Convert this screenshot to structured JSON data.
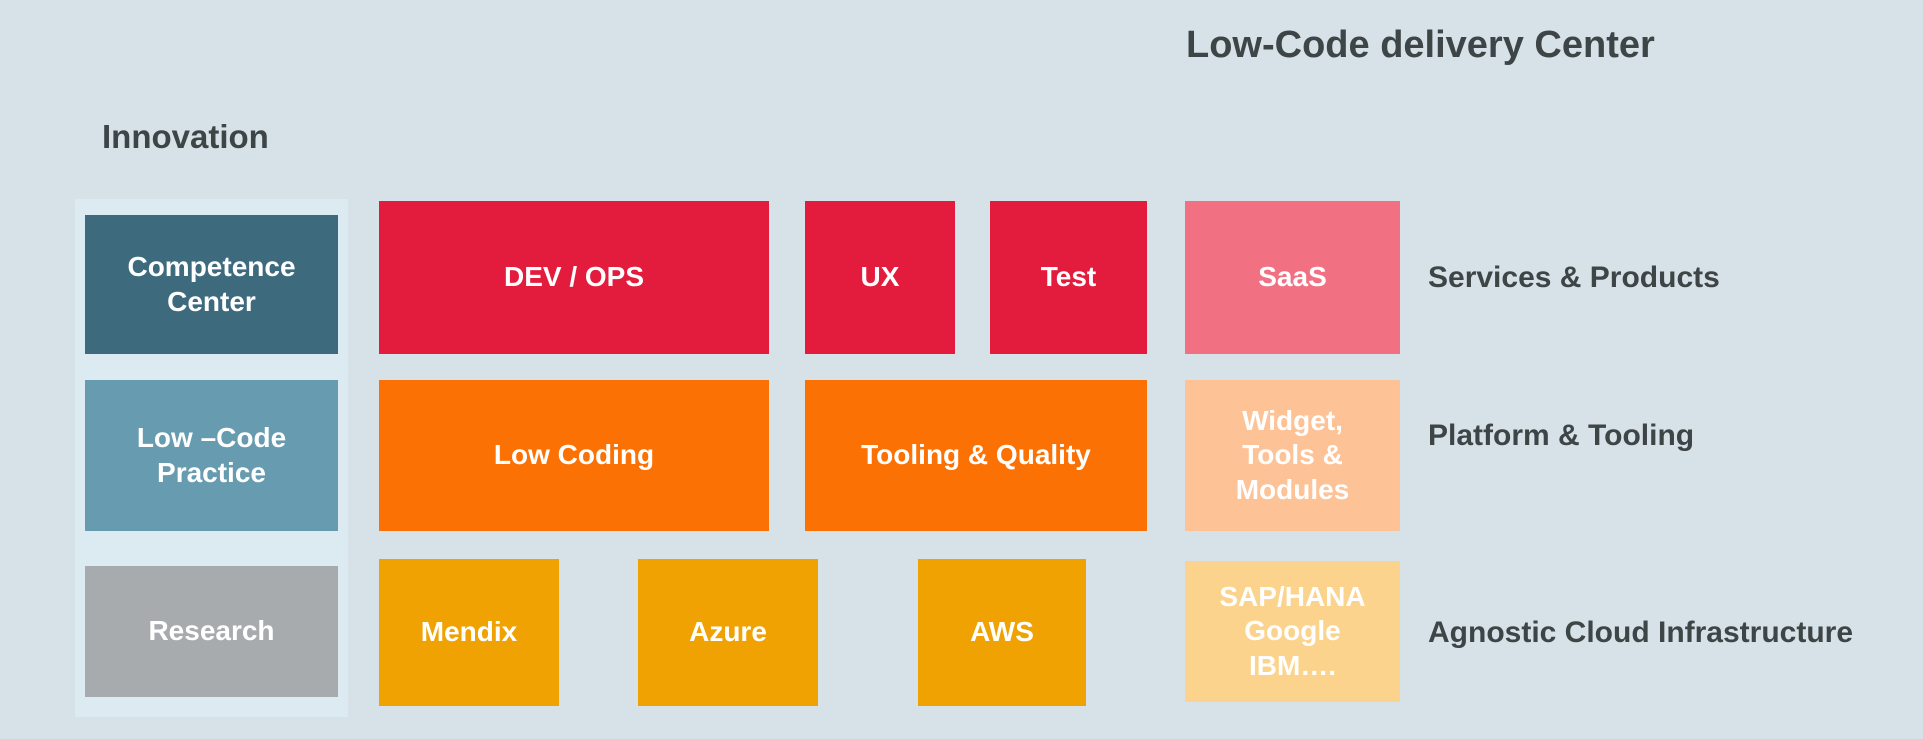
{
  "header": {
    "title": "Low-Code delivery Center"
  },
  "innovation": {
    "heading": "Innovation",
    "panel_color": "#dcebf1",
    "items": [
      {
        "id": "competence-center",
        "label": "Competence\nCenter",
        "color": "#3d6b7d"
      },
      {
        "id": "low-code-practice",
        "label": "Low –Code\nPractice",
        "color": "#669bb0"
      },
      {
        "id": "research",
        "label": "Research",
        "color": "#a8abad"
      }
    ]
  },
  "matrix": {
    "rows": [
      {
        "label": "Services & Products",
        "boxes": [
          {
            "id": "dev-ops",
            "label": "DEV / OPS",
            "color": "#e31c3d"
          },
          {
            "id": "ux",
            "label": "UX",
            "color": "#e31c3d"
          },
          {
            "id": "test",
            "label": "Test",
            "color": "#e31c3d"
          },
          {
            "id": "saas",
            "label": "SaaS",
            "color": "#f17183"
          }
        ]
      },
      {
        "label": "Platform & Tooling",
        "boxes": [
          {
            "id": "low-coding",
            "label": "Low Coding",
            "color": "#fb7103"
          },
          {
            "id": "tooling-quality",
            "label": "Tooling & Quality",
            "color": "#fb7103"
          },
          {
            "id": "widget-tools-modules",
            "label": "Widget,\nTools &\nModules",
            "color": "#fdc296"
          }
        ]
      },
      {
        "label": "Agnostic Cloud Infrastructure",
        "boxes": [
          {
            "id": "mendix",
            "label": "Mendix",
            "color": "#f0a202"
          },
          {
            "id": "azure",
            "label": "Azure",
            "color": "#f0a202"
          },
          {
            "id": "aws",
            "label": "AWS",
            "color": "#f0a202"
          },
          {
            "id": "sap-hana-google-ibm",
            "label": "SAP/HANA\nGoogle\nIBM….",
            "color": "#fbd38d"
          }
        ]
      }
    ]
  },
  "colors": {
    "background": "#d7e2e8",
    "panel": "#dcebf1",
    "text_dark": "#3e4547",
    "text_light": "#ffffff"
  }
}
